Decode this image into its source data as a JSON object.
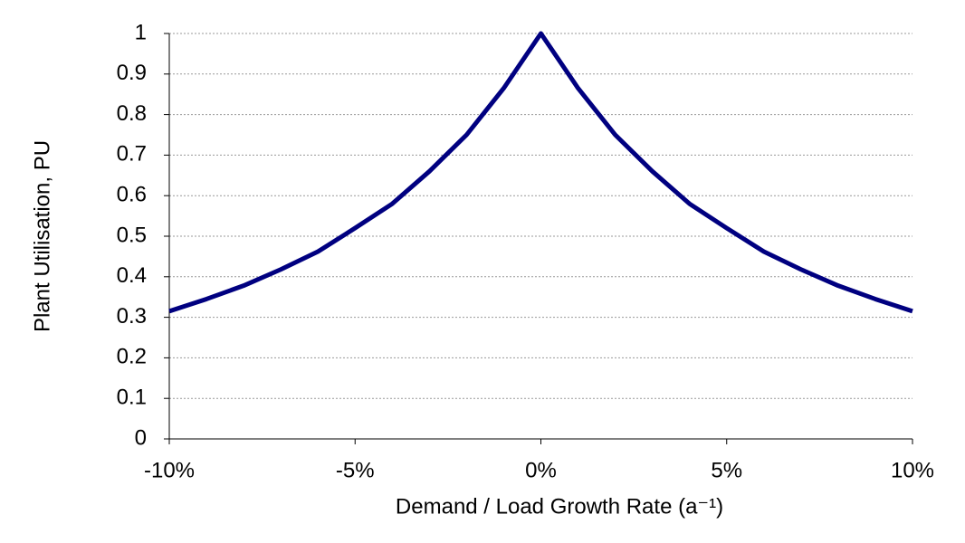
{
  "chart_data": {
    "type": "line",
    "x_label": "Demand / Load Growth Rate (a⁻¹)",
    "y_label": "Plant Utilisation, PU",
    "x": [
      -10,
      -9,
      -8,
      -7,
      -6,
      -5,
      -4,
      -3,
      -2,
      -1,
      0,
      1,
      2,
      3,
      4,
      5,
      6,
      7,
      8,
      9,
      10
    ],
    "values": [
      0.315,
      0.345,
      0.378,
      0.418,
      0.462,
      0.52,
      0.58,
      0.66,
      0.75,
      0.865,
      1.0,
      0.865,
      0.75,
      0.66,
      0.58,
      0.52,
      0.462,
      0.418,
      0.378,
      0.345,
      0.315
    ],
    "color": "#000080",
    "xlim": [
      -10,
      10
    ],
    "xticks": [
      {
        "value": -10,
        "label": "-10%"
      },
      {
        "value": -5,
        "label": "-5%"
      },
      {
        "value": 0,
        "label": "0%"
      },
      {
        "value": 5,
        "label": "5%"
      },
      {
        "value": 10,
        "label": "10%"
      }
    ],
    "ylim": [
      0,
      1
    ],
    "yticks": [
      0,
      0.1,
      0.2,
      0.3,
      0.4,
      0.5,
      0.6,
      0.7,
      0.8,
      0.9,
      1
    ],
    "grid": true
  }
}
